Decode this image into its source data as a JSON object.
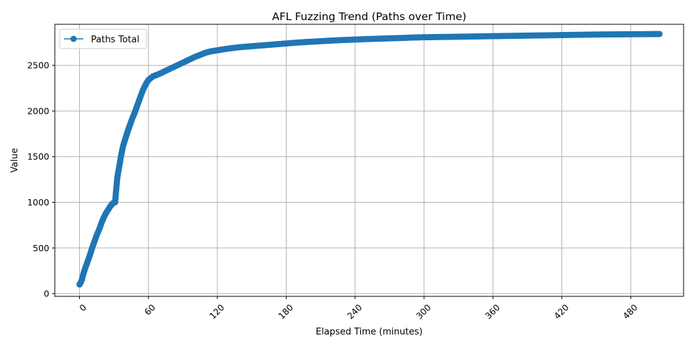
{
  "chart_data": {
    "type": "line",
    "title": "AFL Fuzzing Trend (Paths over Time)",
    "xlabel": "Elapsed Time (minutes)",
    "ylabel": "Value",
    "xlim": [
      -21.5,
      526
    ],
    "ylim": [
      -30,
      2950
    ],
    "xticks": [
      0,
      60,
      120,
      180,
      240,
      300,
      360,
      420,
      480
    ],
    "xtick_labels": [
      "0",
      "60",
      "120",
      "180",
      "240",
      "300",
      "360",
      "420",
      "480"
    ],
    "xtick_rotation": -45,
    "yticks": [
      0,
      500,
      1000,
      1500,
      2000,
      2500
    ],
    "ytick_labels": [
      "0",
      "500",
      "1000",
      "1500",
      "2000",
      "2500"
    ],
    "grid": true,
    "legend": {
      "position": "top-left"
    },
    "marker": "circle",
    "color": "#1f77b4",
    "series": [
      {
        "name": "Paths Total",
        "x": [
          0,
          1,
          2,
          3,
          5,
          7,
          9,
          11,
          13,
          15,
          17,
          19,
          21,
          23,
          25,
          27,
          29,
          31,
          32,
          33,
          34,
          35,
          36,
          37,
          38,
          40,
          42,
          44,
          46,
          48,
          50,
          52,
          54,
          56,
          58,
          60,
          62,
          64,
          66,
          68,
          70,
          75,
          80,
          85,
          90,
          95,
          100,
          105,
          110,
          115,
          120,
          130,
          140,
          150,
          160,
          170,
          180,
          190,
          200,
          210,
          220,
          230,
          240,
          250,
          260,
          270,
          280,
          290,
          300,
          310,
          320,
          330,
          340,
          350,
          360,
          370,
          380,
          390,
          400,
          410,
          420,
          430,
          440,
          450,
          460,
          470,
          480,
          490,
          500,
          505
        ],
        "y": [
          100,
          120,
          150,
          200,
          280,
          350,
          420,
          500,
          570,
          640,
          700,
          770,
          830,
          880,
          920,
          960,
          990,
          1000,
          1150,
          1280,
          1350,
          1420,
          1500,
          1560,
          1620,
          1700,
          1780,
          1850,
          1920,
          1980,
          2050,
          2120,
          2190,
          2250,
          2300,
          2340,
          2360,
          2380,
          2390,
          2400,
          2410,
          2440,
          2470,
          2500,
          2530,
          2560,
          2590,
          2615,
          2640,
          2655,
          2665,
          2685,
          2700,
          2710,
          2720,
          2730,
          2740,
          2750,
          2758,
          2765,
          2772,
          2778,
          2783,
          2788,
          2792,
          2796,
          2800,
          2805,
          2808,
          2810,
          2812,
          2814,
          2816,
          2818,
          2820,
          2822,
          2824,
          2826,
          2828,
          2830,
          2832,
          2834,
          2836,
          2838,
          2839,
          2840,
          2841,
          2842,
          2843,
          2844
        ]
      }
    ]
  }
}
